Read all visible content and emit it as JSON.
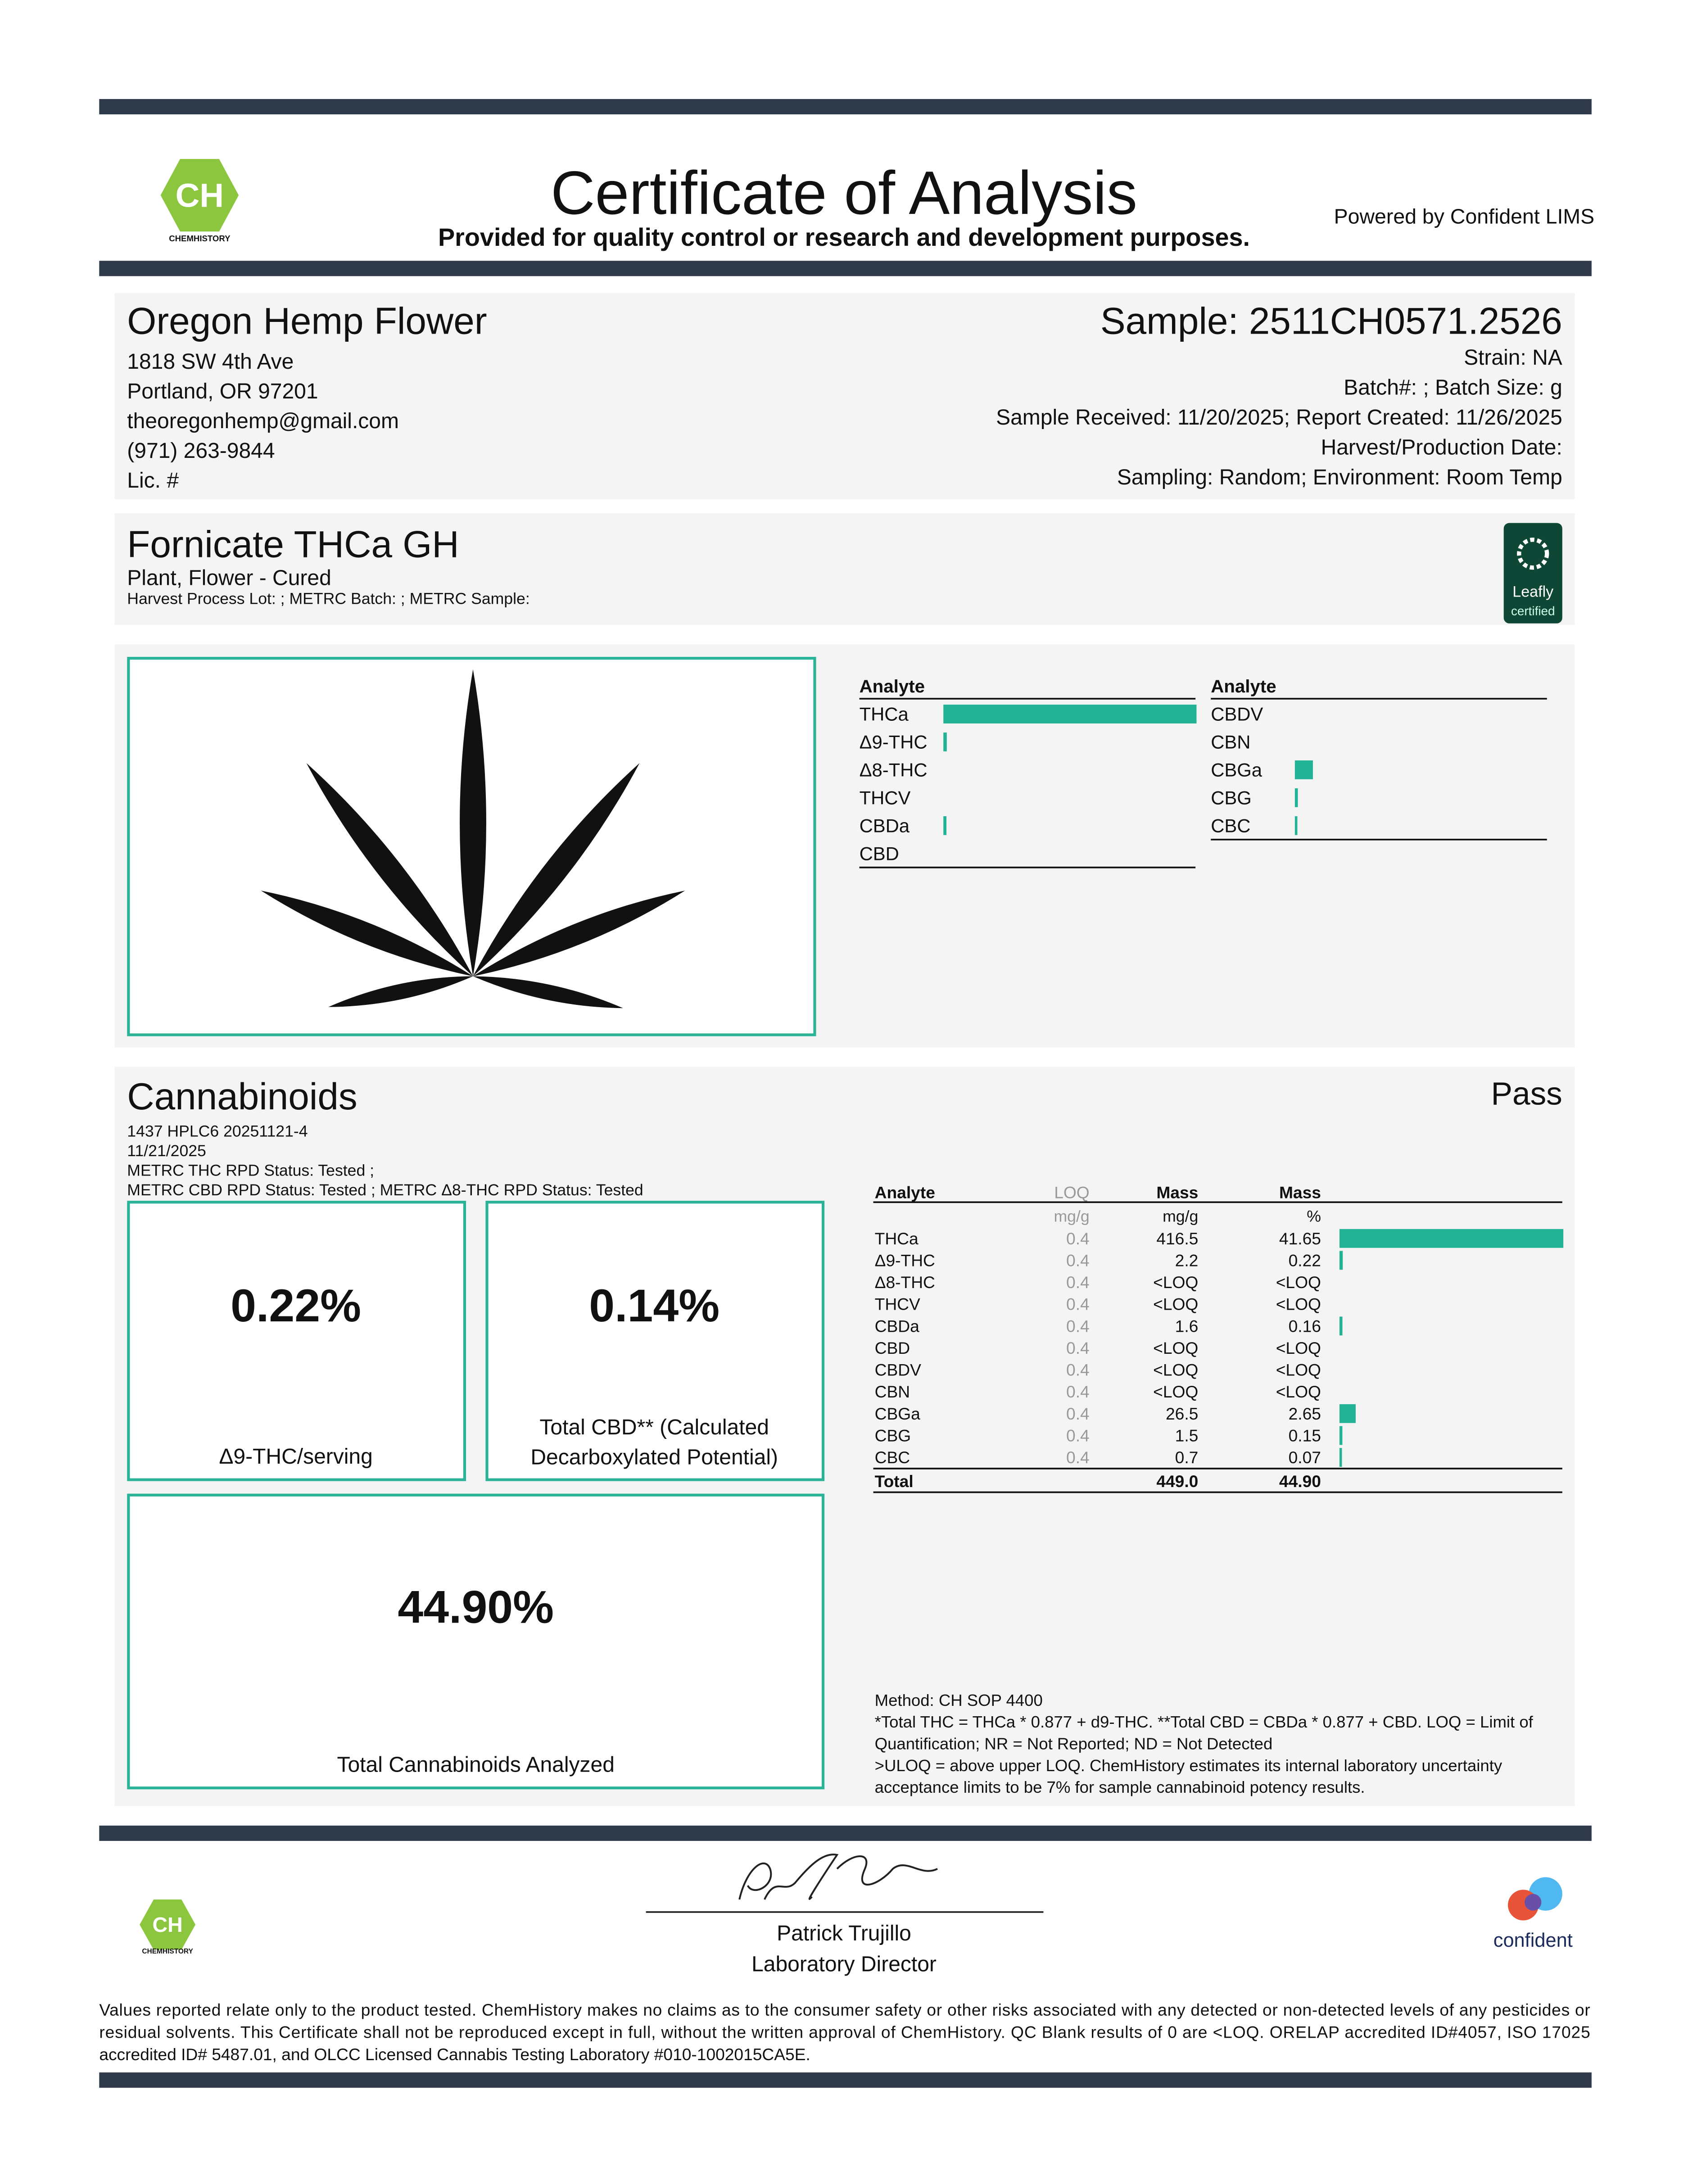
{
  "header": {
    "logo_mark": "CH",
    "logo_name": "CHEMHISTORY",
    "title": "Certificate of Analysis",
    "subtitle": "Provided for quality control or research and development purposes.",
    "powered_by": "Powered by Confident LIMS"
  },
  "client": {
    "name": "Oregon Hemp Flower",
    "lines": [
      "1818 SW 4th Ave",
      "Portland, OR 97201",
      "theoregonhemp@gmail.com",
      "(971) 263-9844",
      "Lic. #"
    ]
  },
  "sample": {
    "id": "Sample: 2511CH0571.2526",
    "lines": [
      "Strain: NA",
      "Batch#: ; Batch Size:  g",
      "Sample Received: 11/20/2025; Report Created: 11/26/2025",
      "Harvest/Production Date: ",
      "Sampling: Random; Environment: Room Temp"
    ]
  },
  "product": {
    "name": "Fornicate THCa GH",
    "type": "Plant, Flower - Cured",
    "lots": "Harvest Process Lot: ; METRC Batch: ; METRC Sample:",
    "badge": {
      "name": "Leafly",
      "tag": "certified"
    }
  },
  "cannabinoids": {
    "title": "Cannabinoids",
    "result": "Pass",
    "info": [
      "1437 HPLC6 20251121-4",
      "11/21/2025",
      "METRC THC RPD Status: Tested ;",
      "METRC CBD RPD Status: Tested ; METRC Δ8-THC RPD Status: Tested"
    ],
    "boxes": [
      {
        "value": "0.22%",
        "label_lines": [
          "Δ9-THC/serving"
        ]
      },
      {
        "value": "0.14%",
        "label_lines": [
          "Total CBD** (Calculated",
          "Decarboxylated Potential)"
        ]
      },
      {
        "value": "44.90%",
        "label_lines": [
          "Total Cannabinoids Analyzed"
        ]
      }
    ],
    "table": {
      "headers": [
        "Analyte",
        "LOQ",
        "Mass",
        "Mass"
      ],
      "units": [
        "mg/g",
        "mg/g",
        "%"
      ],
      "rows": [
        [
          "THCa",
          0.4,
          416.5,
          41.65
        ],
        [
          "Δ9-THC",
          0.4,
          2.2,
          0.22
        ],
        [
          "Δ8-THC",
          0.4,
          "<LOQ",
          "<LOQ"
        ],
        [
          "THCV",
          0.4,
          "<LOQ",
          "<LOQ"
        ],
        [
          "CBDa",
          0.4,
          1.6,
          0.16
        ],
        [
          "CBD",
          0.4,
          "<LOQ",
          "<LOQ"
        ],
        [
          "CBDV",
          0.4,
          "<LOQ",
          "<LOQ"
        ],
        [
          "CBN",
          0.4,
          "<LOQ",
          "<LOQ"
        ],
        [
          "CBGa",
          0.4,
          26.5,
          2.65
        ],
        [
          "CBG",
          0.4,
          1.5,
          0.15
        ],
        [
          "CBC",
          0.4,
          0.7,
          0.07
        ]
      ],
      "total": [
        "Total",
        "449.0",
        "44.90"
      ]
    },
    "notes": [
      "Method: CH SOP 4400",
      "*Total THC = THCa * 0.877 + d9-THC. **Total CBD = CBDa * 0.877 + CBD. LOQ = Limit of",
      "Quantification; NR = Not Reported; ND = Not Detected",
      ">ULOQ = above upper LOQ. ChemHistory estimates its internal laboratory uncertainty",
      "acceptance limits to be 7% for sample cannabinoid potency results."
    ]
  },
  "signature": {
    "name": "Patrick Trujillo",
    "title": "Laboratory Director"
  },
  "footer": {
    "brand": "confident",
    "disclaimer": [
      "Values reported relate only to the product tested. ChemHistory makes no claims as to the consumer safety or other risks associated with any detected or non-detected levels of any pesticides or",
      "residual solvents. This Certificate shall not be reproduced except in full, without the written approval of ChemHistory. QC Blank results of 0 are <LOQ.  ORELAP accredited ID#4057, ISO 17025",
      "accredited ID# 5487.01, and OLCC Licensed Cannabis Testing Laboratory #010-1002015CA5E."
    ]
  }
}
